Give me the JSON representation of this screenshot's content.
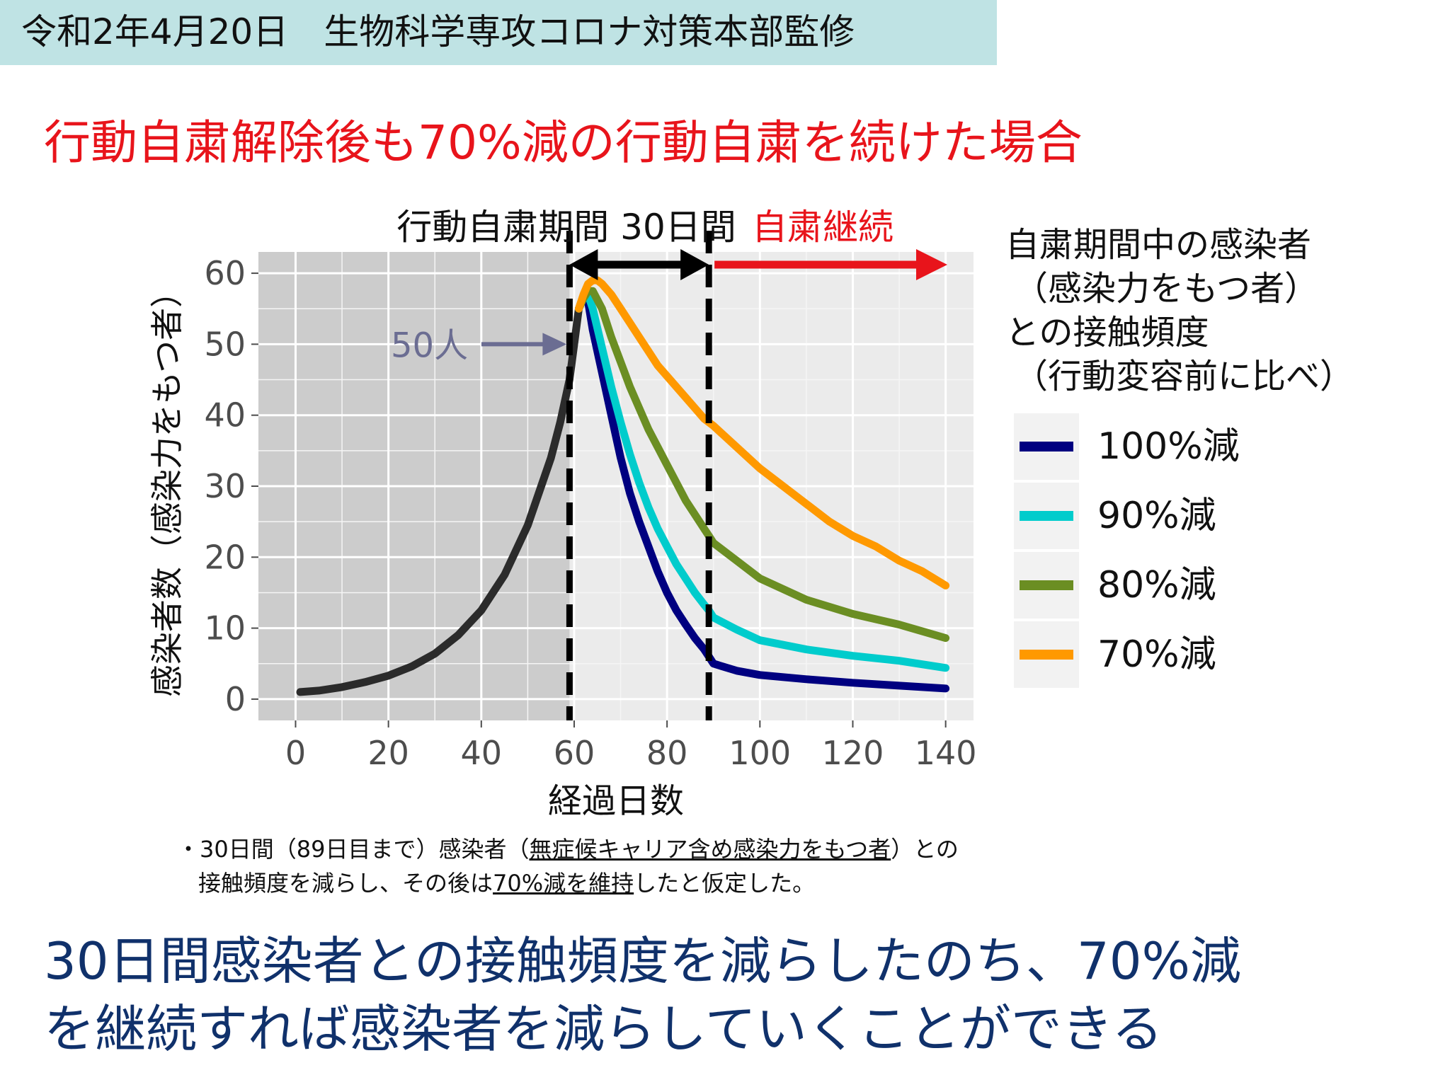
{
  "header": {
    "text": "令和2年4月20日　生物科学専攻コロナ対策本部監修"
  },
  "headline": "行動自粛解除後も70%減の行動自粛を続けた場合",
  "chart_data": {
    "type": "line",
    "title": "",
    "xlabel": "経過日数",
    "ylabel": "感染者数（感染力をもつ者）",
    "xlim": [
      -8,
      146
    ],
    "ylim": [
      -3,
      63
    ],
    "xticks": [
      0,
      20,
      40,
      60,
      80,
      100,
      120,
      140
    ],
    "yticks": [
      0,
      10,
      20,
      30,
      40,
      50,
      60
    ],
    "grid": true,
    "legend_position": "right",
    "legend_title": "自粛期間中の感染者\n（感染力をもつ者）\nとの接触頻度\n（行動変容前に比べ）",
    "shaded_region": {
      "x": [
        -8,
        59
      ]
    },
    "vlines": [
      59,
      89
    ],
    "period_label": "行動自粛期間 30日間",
    "continue_label": "自粛継続",
    "annotation": {
      "text": "50人",
      "x": 59,
      "y": 50
    },
    "colors": {
      "before": "#2b2b2b",
      "continue_arrow": "#e8141b",
      "annotation": "#6b6d92"
    },
    "series": [
      {
        "name": "",
        "color": "#2b2b2b",
        "x": [
          1,
          5,
          10,
          15,
          20,
          25,
          30,
          35,
          40,
          45,
          50,
          55,
          57,
          59,
          60,
          61
        ],
        "y": [
          1,
          1.2,
          1.7,
          2.4,
          3.3,
          4.6,
          6.4,
          9,
          12.5,
          17.5,
          24.5,
          34,
          39,
          45,
          50,
          55
        ]
      },
      {
        "name": "100%減",
        "color": "#000080",
        "x": [
          61,
          62,
          63,
          64,
          66,
          68,
          70,
          72,
          74,
          76,
          78,
          80,
          82,
          84,
          86,
          88,
          89,
          90,
          95,
          100,
          110,
          120,
          130,
          140
        ],
        "y": [
          55,
          56.5,
          56,
          52,
          46,
          40,
          34,
          29,
          25,
          21.5,
          18,
          15,
          12.5,
          10.5,
          8.6,
          7,
          6,
          5,
          4,
          3.4,
          2.8,
          2.3,
          1.9,
          1.5
        ]
      },
      {
        "name": "90%減",
        "color": "#00cccc",
        "x": [
          61,
          62,
          63,
          64,
          66,
          68,
          70,
          72,
          74,
          76,
          78,
          80,
          82,
          84,
          86,
          88,
          89,
          90,
          95,
          100,
          110,
          120,
          130,
          140
        ],
        "y": [
          55,
          56.5,
          57,
          55,
          49.5,
          44,
          39,
          34.5,
          30.5,
          27,
          24,
          21.5,
          19,
          17,
          15,
          13.3,
          12.5,
          11.5,
          9.8,
          8.3,
          7,
          6.1,
          5.4,
          4.4
        ]
      },
      {
        "name": "80%減",
        "color": "#6b8e23",
        "x": [
          61,
          62,
          63,
          64,
          66,
          68,
          70,
          72,
          74,
          76,
          78,
          80,
          82,
          84,
          86,
          88,
          89,
          90,
          95,
          100,
          110,
          120,
          130,
          140
        ],
        "y": [
          55,
          56.5,
          57.5,
          57.5,
          55,
          51,
          47.5,
          44,
          41,
          38,
          35.5,
          33,
          30.5,
          28,
          26,
          24,
          23,
          22,
          19.5,
          17,
          14,
          12,
          10.5,
          8.6
        ]
      },
      {
        "name": "70%減",
        "color": "#ff9900",
        "x": [
          61,
          62,
          63,
          64,
          65,
          66,
          68,
          70,
          72,
          74,
          76,
          78,
          80,
          82,
          84,
          86,
          88,
          89,
          90,
          95,
          100,
          105,
          110,
          115,
          120,
          125,
          130,
          135,
          140
        ],
        "y": [
          55,
          57,
          58.5,
          59,
          59,
          58.5,
          57,
          55,
          53,
          51,
          49,
          47,
          45.5,
          44,
          42.5,
          41,
          39.5,
          39,
          38.5,
          35.5,
          32.5,
          30,
          27.5,
          25,
          23,
          21.5,
          19.5,
          18,
          16
        ]
      }
    ]
  },
  "note": {
    "line1_a": "・30日間（89日目まで）感染者（",
    "line1_u": "無症候キャリア含め感染力をもつ者",
    "line1_b": "）との",
    "line2_a": "接触頻度を減らし、その後は",
    "line2_u": "70%減を維持",
    "line2_b": "したと仮定した。"
  },
  "conclusion": {
    "line1": "30日間感染者との接触頻度を減らしたのち、70%減",
    "line2": "を継続すれば感染者を減らしていくことができる"
  }
}
